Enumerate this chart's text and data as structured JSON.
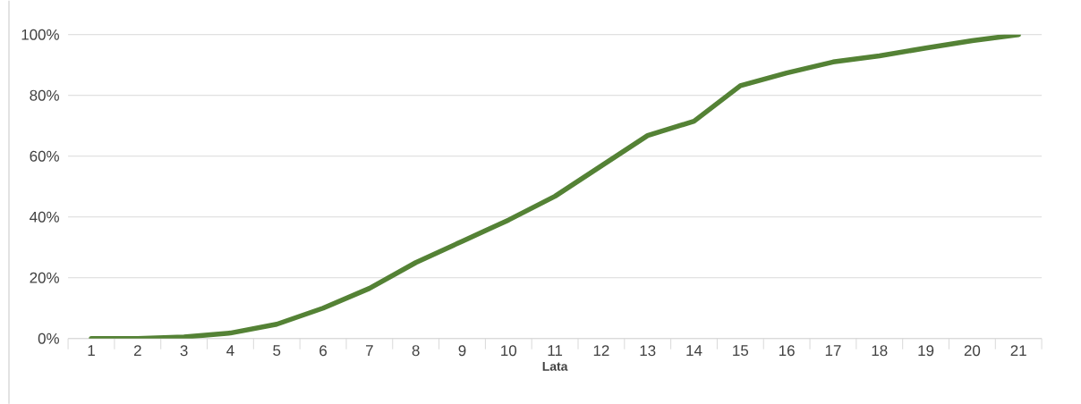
{
  "chart_data": {
    "type": "line",
    "xlabel": "Lata",
    "categories": [
      "1",
      "2",
      "3",
      "4",
      "5",
      "6",
      "7",
      "8",
      "9",
      "10",
      "11",
      "12",
      "13",
      "14",
      "15",
      "16",
      "17",
      "18",
      "19",
      "20",
      "21"
    ],
    "values": [
      0,
      0,
      0.5,
      1.8,
      4.7,
      10,
      16.5,
      25,
      32,
      39,
      46.8,
      56.8,
      66.8,
      71.5,
      83.2,
      87.4,
      91,
      93,
      95.6,
      98,
      100
    ],
    "color": "#548235",
    "ylim": [
      0,
      100
    ],
    "yticks": [
      {
        "value": 0,
        "label": "0%"
      },
      {
        "value": 20,
        "label": "20%"
      },
      {
        "value": 40,
        "label": "40%"
      },
      {
        "value": 60,
        "label": "60%"
      },
      {
        "value": 80,
        "label": "80%"
      },
      {
        "value": 100,
        "label": "100%"
      }
    ],
    "grid": "y",
    "marker": "none",
    "line_style": "solid"
  }
}
